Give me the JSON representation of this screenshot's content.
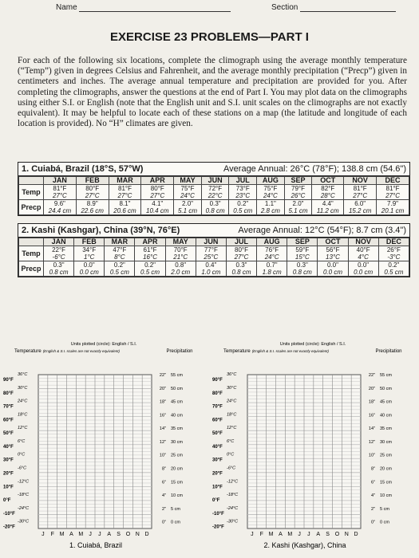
{
  "header": {
    "name_label": "Name",
    "section_label": "Section"
  },
  "title": "EXERCISE 23 PROBLEMS—PART I",
  "instructions": "For each of the following six locations, complete the climograph using the average monthly temperature (“Temp”) given in degrees Celsius and Fahrenheit, and the average monthly precipitation (“Precp”) given in centimeters and inches. The average annual temperature and precipitation are provided for you. After completing the climographs, answer the questions at the end of Part I. You may plot data on the climographs using either S.I. or English (note that the English unit and S.I. unit scales on the climographs are not exactly equivalent). It may be helpful to locate each of these stations on a map (the latitude and longitude of each location is provided). No “H” climates are given.",
  "stations": [
    {
      "heading": "1. Cuiabá, Brazil (18°S, 57°W)",
      "annual": "Average Annual: 26°C (78°F); 138.8 cm (54.6\")",
      "months": [
        "JAN",
        "FEB",
        "MAR",
        "APR",
        "MAY",
        "JUN",
        "JUL",
        "AUG",
        "SEP",
        "OCT",
        "NOV",
        "DEC"
      ],
      "temp_label": "Temp",
      "precip_label": "Precp",
      "temp_f": [
        "81°F",
        "80°F",
        "81°F",
        "80°F",
        "75°F",
        "72°F",
        "73°F",
        "75°F",
        "79°F",
        "82°F",
        "81°F",
        "81°F"
      ],
      "temp_c": [
        "27°C",
        "27°C",
        "27°C",
        "27°C",
        "24°C",
        "22°C",
        "23°C",
        "24°C",
        "26°C",
        "28°C",
        "27°C",
        "27°C"
      ],
      "precip_in": [
        "9.6\"",
        "8.9\"",
        "8.1\"",
        "4.1\"",
        "2.0\"",
        "0.3\"",
        "0.2\"",
        "1.1\"",
        "2.0\"",
        "4.4\"",
        "6.0\"",
        "7.9\""
      ],
      "precip_cm": [
        "24.4 cm",
        "22.6 cm",
        "20.6 cm",
        "10.4 cm",
        "5.1 cm",
        "0.8 cm",
        "0.5 cm",
        "2.8 cm",
        "5.1 cm",
        "11.2 cm",
        "15.2 cm",
        "20.1 cm"
      ]
    },
    {
      "heading": "2. Kashi (Kashgar), China (39°N, 76°E)",
      "annual": "Average Annual: 12°C (54°F); 8.7 cm (3.4\")",
      "months": [
        "JAN",
        "FEB",
        "MAR",
        "APR",
        "MAY",
        "JUN",
        "JUL",
        "AUG",
        "SEP",
        "OCT",
        "NOV",
        "DEC"
      ],
      "temp_label": "Temp",
      "precip_label": "Precp",
      "temp_f": [
        "22°F",
        "34°F",
        "47°F",
        "61°F",
        "70°F",
        "77°F",
        "80°F",
        "76°F",
        "59°F",
        "56°F",
        "40°F",
        "26°F"
      ],
      "temp_c": [
        "-6°C",
        "1°C",
        "8°C",
        "16°C",
        "21°C",
        "25°C",
        "27°C",
        "24°C",
        "15°C",
        "13°C",
        "4°C",
        "-3°C"
      ],
      "precip_in": [
        "0.3\"",
        "0.0\"",
        "0.2\"",
        "0.2\"",
        "0.8\"",
        "0.4\"",
        "0.3\"",
        "0.7\"",
        "0.3\"",
        "0.0\"",
        "0.0\"",
        "0.2\""
      ],
      "precip_cm": [
        "0.8 cm",
        "0.0 cm",
        "0.5 cm",
        "0.5 cm",
        "2.0 cm",
        "1.0 cm",
        "0.8 cm",
        "1.8 cm",
        "0.8 cm",
        "0.0 cm",
        "0.0 cm",
        "0.5 cm"
      ]
    }
  ],
  "climograph": {
    "units_note": "Units plotted (circle): English / S.I.",
    "temperature_label": "Temperature",
    "temperature_note": "(English & S.I. scales are not exactly equivalent)",
    "precipitation_label": "Precipitation",
    "f_scale": [
      "90°F",
      "80°F",
      "70°F",
      "60°F",
      "50°F",
      "40°F",
      "30°F",
      "20°F",
      "10°F",
      "0°F",
      "-10°F",
      "-20°F"
    ],
    "c_scale": [
      "36°C",
      "30°C",
      "24°C",
      "18°C",
      "12°C",
      "6°C",
      "0°C",
      "-6°C",
      "-12°C",
      "-18°C",
      "-24°C",
      "-30°C"
    ],
    "in_scale": [
      "22\"",
      "20\"",
      "18\"",
      "16\"",
      "14\"",
      "12\"",
      "10\"",
      "8\"",
      "6\"",
      "4\"",
      "2\"",
      "0\""
    ],
    "cm_scale": [
      "55 cm",
      "50 cm",
      "45 cm",
      "40 cm",
      "35 cm",
      "30 cm",
      "25 cm",
      "20 cm",
      "15 cm",
      "10 cm",
      "5 cm",
      "0 cm"
    ],
    "month_letters": [
      "J",
      "F",
      "M",
      "A",
      "M",
      "J",
      "J",
      "A",
      "S",
      "O",
      "N",
      "D"
    ]
  },
  "captions": [
    "1. Cuiabá, Brazil",
    "2. Kashi (Kashgar), China"
  ]
}
